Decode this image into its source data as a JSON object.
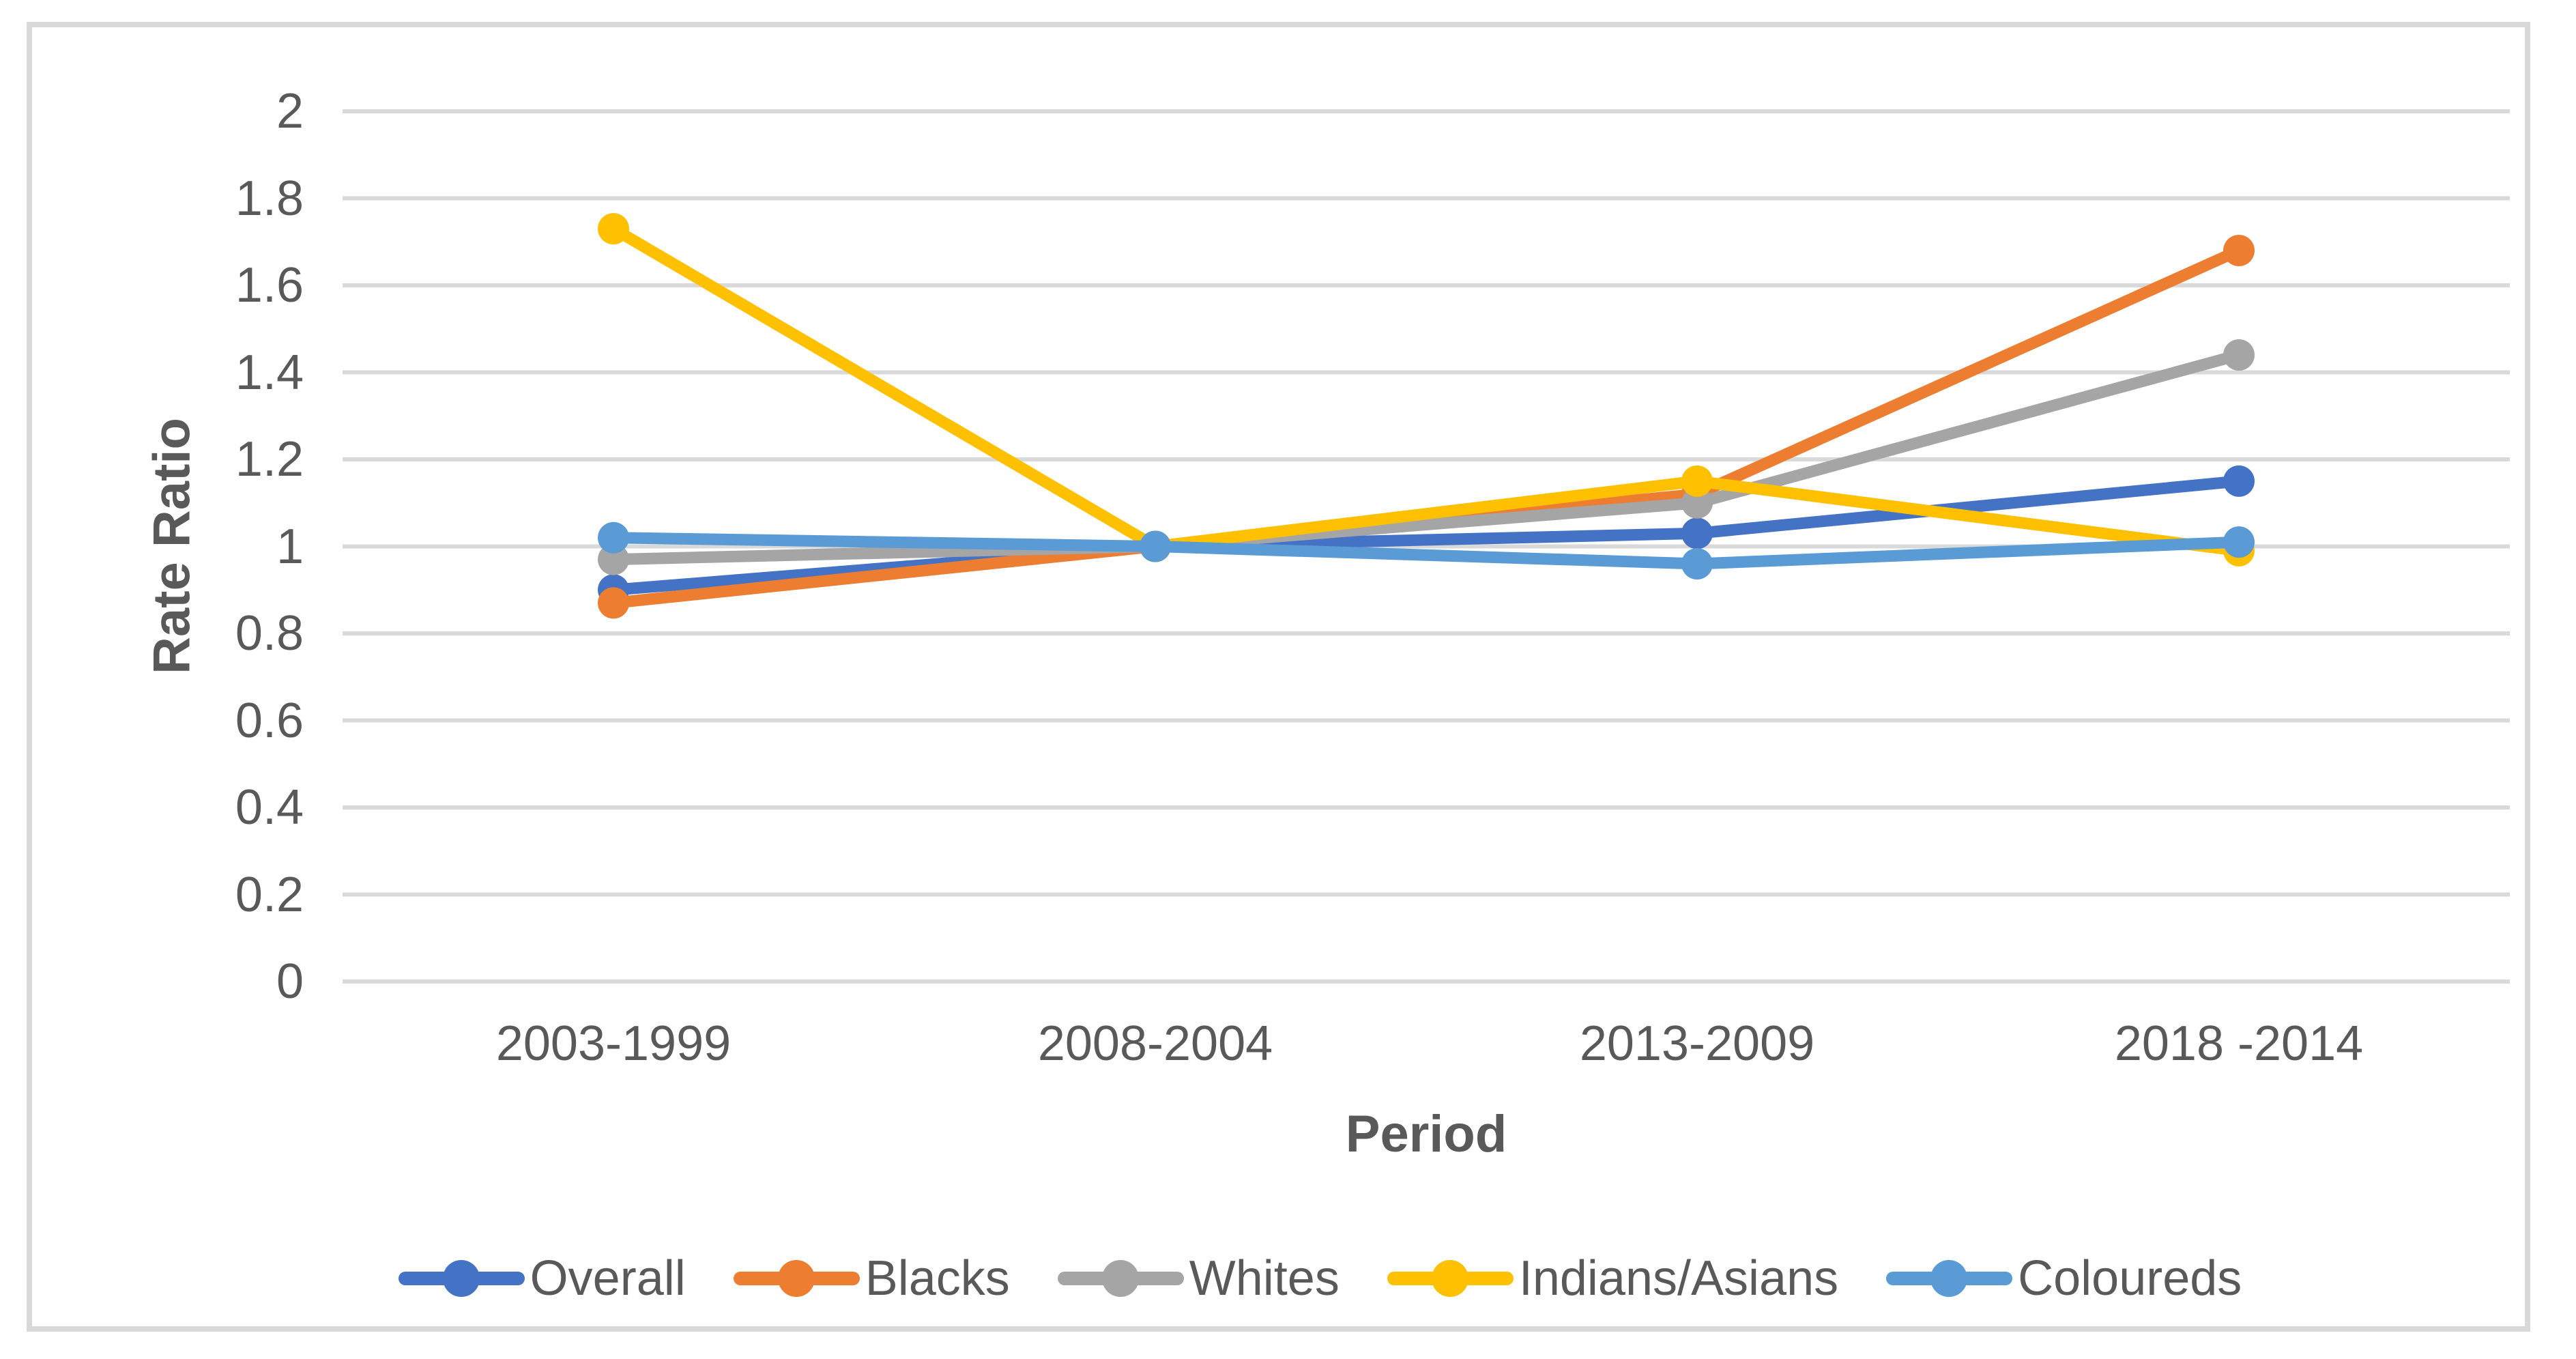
{
  "chart_data": {
    "type": "line",
    "title": "",
    "xlabel": "Period",
    "ylabel": "Rate Ratio",
    "ylim": [
      0,
      2
    ],
    "y_tick_step": 0.2,
    "y_tick_labels": [
      "2",
      "1.8",
      "1.6",
      "1.4",
      "1.2",
      "1",
      "0.8",
      "0.6",
      "0.4",
      "0.2",
      "0"
    ],
    "categories": [
      "2003-1999",
      "2008-2004",
      "2013-2009",
      "2018 -2014"
    ],
    "series": [
      {
        "name": "Overall",
        "color": "#4472C4",
        "values": [
          0.9,
          1.0,
          1.03,
          1.15
        ]
      },
      {
        "name": "Blacks",
        "color": "#ED7D31",
        "values": [
          0.87,
          1.0,
          1.12,
          1.68
        ]
      },
      {
        "name": "Whites",
        "color": "#A5A5A5",
        "values": [
          0.97,
          1.0,
          1.1,
          1.44
        ]
      },
      {
        "name": "Indians/Asians",
        "color": "#FFC000",
        "values": [
          1.73,
          1.0,
          1.15,
          0.99
        ]
      },
      {
        "name": "Coloureds",
        "color": "#5B9BD5",
        "values": [
          1.02,
          1.0,
          0.96,
          1.01
        ]
      }
    ],
    "legend_position": "bottom",
    "grid": true,
    "gridline_color": "#D9D9D9",
    "frame_border_color": "#D9D9D9",
    "text_color": "#595959"
  }
}
